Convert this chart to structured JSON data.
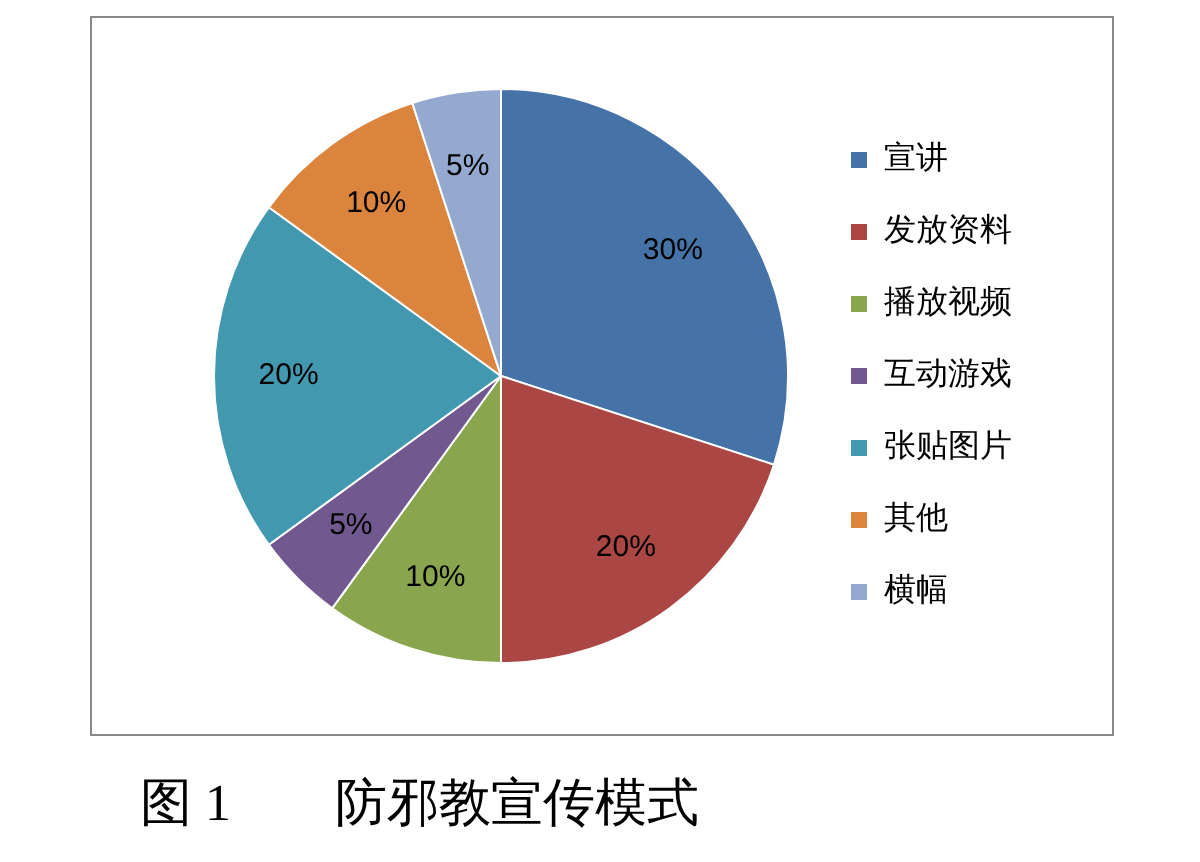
{
  "chart_data": {
    "type": "pie",
    "categories": [
      "宣讲",
      "发放资料",
      "播放视频",
      "互动游戏",
      "张贴图片",
      "其他",
      "横幅"
    ],
    "values": [
      30,
      20,
      10,
      5,
      20,
      10,
      5
    ],
    "colors": [
      "#4572a7",
      "#aa4643",
      "#89a54e",
      "#71588f",
      "#4198af",
      "#db843d",
      "#93a9cf"
    ],
    "value_labels": [
      "30%",
      "20%",
      "10%",
      "5%",
      "20%",
      "10%",
      "5%"
    ],
    "legend": "right",
    "annotations": [
      "图 1　　防邪教宣传模式"
    ]
  }
}
